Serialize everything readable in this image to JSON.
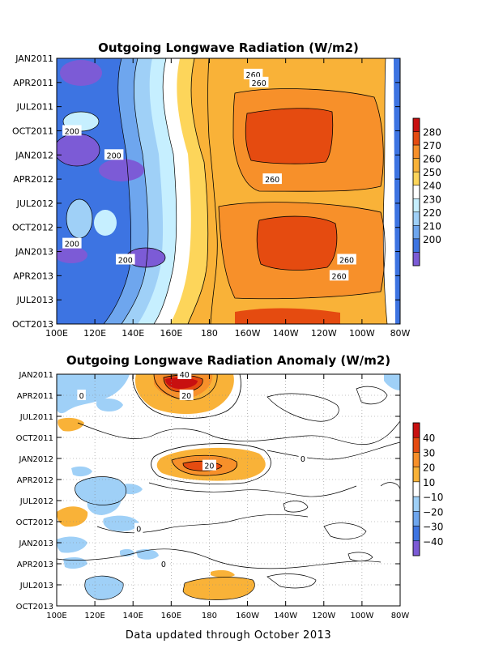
{
  "footer": "Data updated through October 2013",
  "chart_data": [
    {
      "type": "heatmap",
      "title": "Outgoing Longwave Radiation (W/m2)",
      "x_ticks": [
        "100E",
        "120E",
        "140E",
        "160E",
        "180",
        "160W",
        "140W",
        "120W",
        "100W",
        "80W"
      ],
      "y_ticks": [
        "JAN2011",
        "APR2011",
        "JUL2011",
        "OCT2011",
        "JAN2012",
        "APR2012",
        "JUL2012",
        "OCT2012",
        "JAN2013",
        "APR2013",
        "JUL2013",
        "OCT2013"
      ],
      "colorbar_ticks": [
        "280",
        "270",
        "260",
        "250",
        "240",
        "230",
        "220",
        "210",
        "200"
      ],
      "colorbar_colors": [
        "#c81010",
        "#e54b10",
        "#f7902a",
        "#f9b238",
        "#fdd55a",
        "#ffffff",
        "#c6efff",
        "#9fd0f7",
        "#6ea6ee",
        "#3d74e2",
        "#7c5bd6"
      ],
      "contour_labels": [
        {
          "text": "260",
          "x": "157W",
          "y": "MAR2011"
        },
        {
          "text": "260",
          "x": "154W",
          "y": "APR2011"
        },
        {
          "text": "200",
          "x": "108E",
          "y": "OCT2011"
        },
        {
          "text": "200",
          "x": "130E",
          "y": "JAN2012"
        },
        {
          "text": "260",
          "x": "147W",
          "y": "APR2012"
        },
        {
          "text": "200",
          "x": "108E",
          "y": "DEC2012"
        },
        {
          "text": "200",
          "x": "136E",
          "y": "FEB2013"
        },
        {
          "text": "260",
          "x": "108W",
          "y": "FEB2013"
        },
        {
          "text": "260",
          "x": "112W",
          "y": "APR2013"
        }
      ]
    },
    {
      "type": "heatmap",
      "title": "Outgoing Longwave Radiation Anomaly (W/m2)",
      "x_ticks": [
        "100E",
        "120E",
        "140E",
        "160E",
        "180",
        "160W",
        "140W",
        "120W",
        "100W",
        "80W"
      ],
      "y_ticks": [
        "JAN2011",
        "APR2011",
        "JUL2011",
        "OCT2011",
        "JAN2012",
        "APR2012",
        "JUL2012",
        "OCT2012",
        "JAN2013",
        "APR2013",
        "JUL2013",
        "OCT2013"
      ],
      "colorbar_ticks": [
        "40",
        "30",
        "20",
        "10",
        "−10",
        "−20",
        "−30",
        "−40"
      ],
      "colorbar_colors": [
        "#c81010",
        "#e54b10",
        "#f7902a",
        "#f9b238",
        "#ffffff",
        "#9fd0f7",
        "#6ea6ee",
        "#3d74e2",
        "#7c5bd6"
      ],
      "contour_labels": [
        {
          "text": "40",
          "x": "167E",
          "y": "JAN2011"
        },
        {
          "text": "20",
          "x": "168E",
          "y": "APR2011"
        },
        {
          "text": "20",
          "x": "180",
          "y": "FEB2012"
        },
        {
          "text": "0",
          "x": "113E",
          "y": "APR2011"
        },
        {
          "text": "0",
          "x": "131W",
          "y": "JAN2012"
        },
        {
          "text": "0",
          "x": "143E",
          "y": "NOV2012"
        },
        {
          "text": "0",
          "x": "156E",
          "y": "APR2013"
        }
      ]
    }
  ]
}
